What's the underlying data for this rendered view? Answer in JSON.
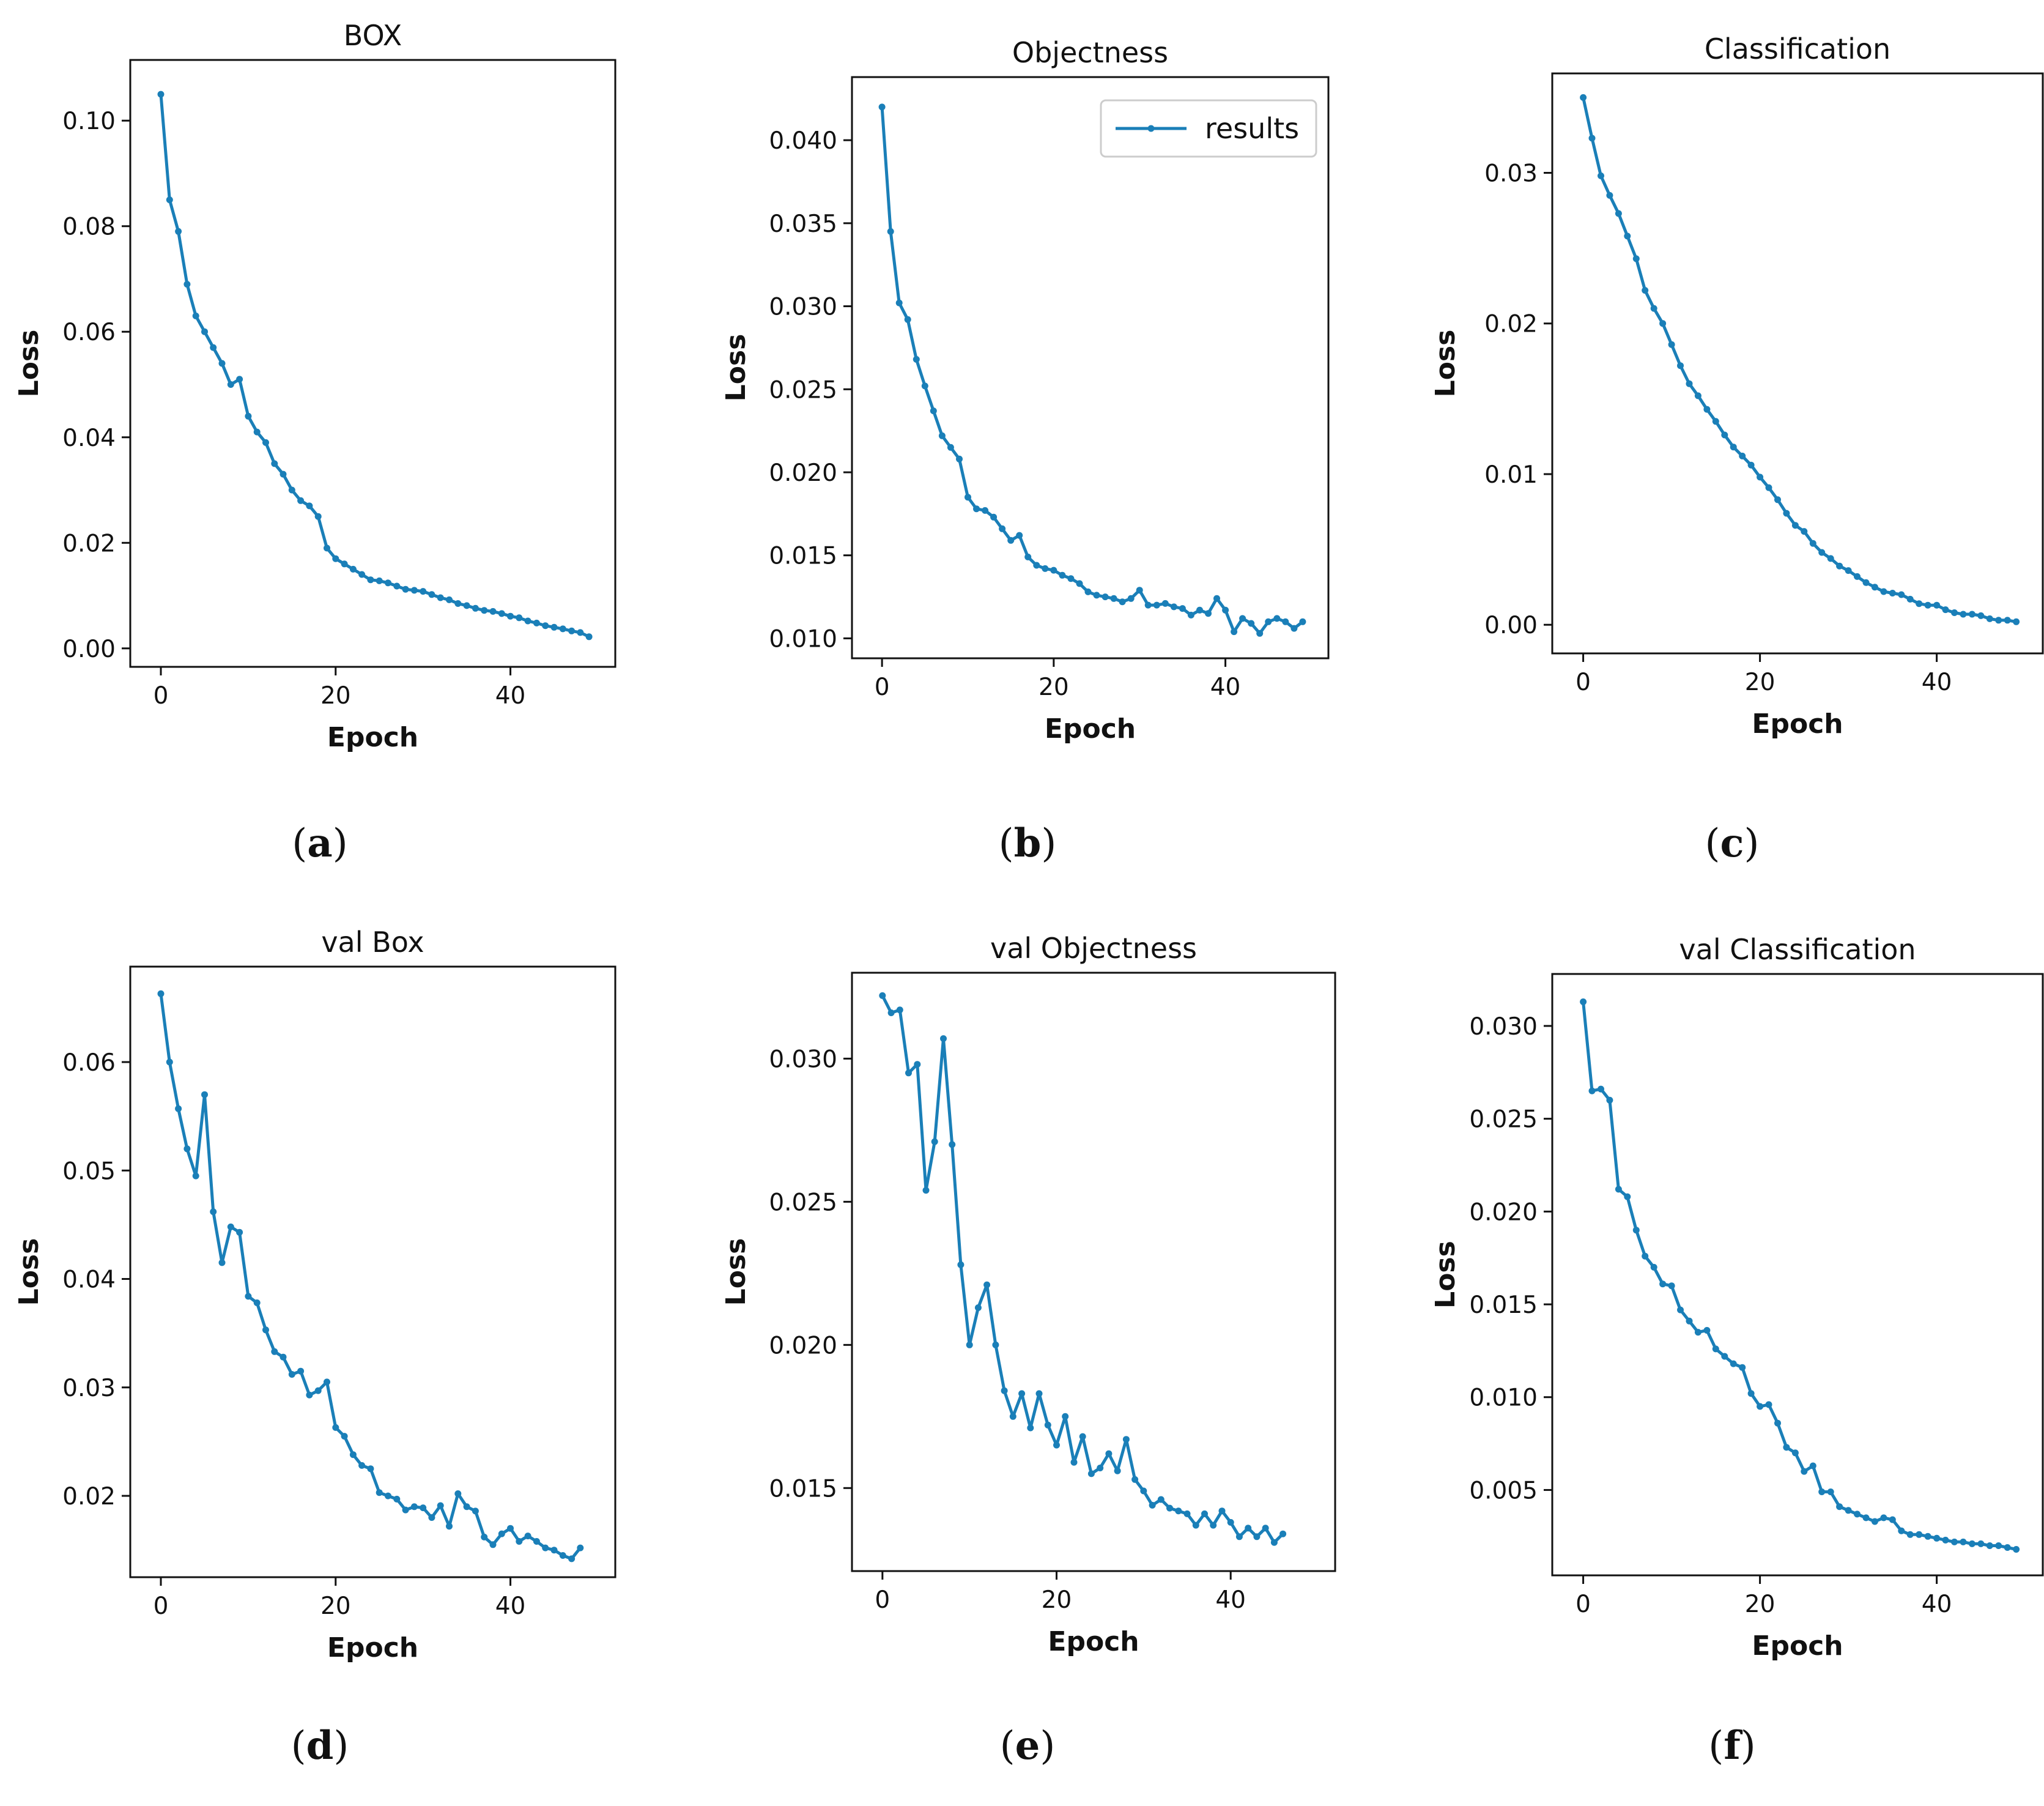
{
  "chart_data": [
    {
      "type": "line",
      "title": "BOX",
      "xlabel": "Epoch",
      "ylabel": "Loss",
      "caption": {
        "open": "(",
        "letter": "a",
        "close": ")"
      },
      "xlim": [
        -3.5,
        52
      ],
      "ylim": [
        -0.0035,
        0.1115
      ],
      "xticks": [
        0,
        20,
        40
      ],
      "yticks": [
        0.0,
        0.02,
        0.04,
        0.06,
        0.08,
        0.1
      ],
      "ytick_labels": [
        "0.00",
        "0.02",
        "0.04",
        "0.06",
        "0.08",
        "0.10"
      ],
      "line_color": "#1a7fb8",
      "grid": false,
      "series": [
        {
          "values": [
            0.105,
            0.085,
            0.079,
            0.069,
            0.063,
            0.06,
            0.057,
            0.054,
            0.05,
            0.051,
            0.044,
            0.041,
            0.039,
            0.035,
            0.033,
            0.03,
            0.028,
            0.027,
            0.025,
            0.019,
            0.017,
            0.016,
            0.015,
            0.014,
            0.013,
            0.0128,
            0.0124,
            0.0118,
            0.0112,
            0.011,
            0.0108,
            0.0102,
            0.0096,
            0.0092,
            0.0085,
            0.0081,
            0.0076,
            0.0072,
            0.007,
            0.0066,
            0.0061,
            0.0058,
            0.0052,
            0.0048,
            0.0043,
            0.004,
            0.0037,
            0.0033,
            0.003,
            0.0022
          ]
        }
      ]
    },
    {
      "type": "line",
      "title": "Objectness",
      "xlabel": "Epoch",
      "ylabel": "Loss",
      "caption": {
        "open": "(",
        "letter": "b",
        "close": ")"
      },
      "xlim": [
        -3.5,
        52
      ],
      "ylim": [
        0.0088,
        0.0438
      ],
      "xticks": [
        0,
        20,
        40
      ],
      "yticks": [
        0.01,
        0.015,
        0.02,
        0.025,
        0.03,
        0.035,
        0.04
      ],
      "ytick_labels": [
        "0.010",
        "0.015",
        "0.020",
        "0.025",
        "0.030",
        "0.035",
        "0.040"
      ],
      "legend": {
        "label": "results",
        "position": "upper right"
      },
      "line_color": "#1a7fb8",
      "grid": false,
      "series": [
        {
          "name": "results",
          "values": [
            0.042,
            0.0345,
            0.0302,
            0.0292,
            0.0268,
            0.0252,
            0.0237,
            0.0222,
            0.0215,
            0.0208,
            0.0185,
            0.0178,
            0.0177,
            0.0173,
            0.0166,
            0.0159,
            0.0162,
            0.0149,
            0.0144,
            0.0142,
            0.0141,
            0.0138,
            0.0136,
            0.0133,
            0.0128,
            0.0126,
            0.0125,
            0.0124,
            0.0122,
            0.0124,
            0.0129,
            0.012,
            0.012,
            0.0121,
            0.0119,
            0.0118,
            0.0114,
            0.0117,
            0.0115,
            0.0124,
            0.0117,
            0.0104,
            0.0112,
            0.0109,
            0.0103,
            0.011,
            0.0112,
            0.011,
            0.0106,
            0.011
          ]
        }
      ]
    },
    {
      "type": "line",
      "title": "Classification",
      "xlabel": "Epoch",
      "ylabel": "Loss",
      "caption": {
        "open": "(",
        "letter": "c",
        "close": ")"
      },
      "xlim": [
        -3.5,
        52
      ],
      "ylim": [
        -0.0019,
        0.0366
      ],
      "xticks": [
        0,
        20,
        40
      ],
      "yticks": [
        0.0,
        0.01,
        0.02,
        0.03
      ],
      "ytick_labels": [
        "0.00",
        "0.01",
        "0.02",
        "0.03"
      ],
      "line_color": "#1a7fb8",
      "grid": false,
      "series": [
        {
          "values": [
            0.035,
            0.0323,
            0.0298,
            0.0285,
            0.0273,
            0.0258,
            0.0243,
            0.0222,
            0.021,
            0.02,
            0.0186,
            0.0172,
            0.016,
            0.0152,
            0.0143,
            0.0135,
            0.0126,
            0.0118,
            0.0112,
            0.0106,
            0.0098,
            0.0091,
            0.0083,
            0.0074,
            0.0066,
            0.0062,
            0.0054,
            0.0048,
            0.0044,
            0.0039,
            0.0036,
            0.0032,
            0.0028,
            0.0025,
            0.0022,
            0.0021,
            0.002,
            0.0017,
            0.0014,
            0.0013,
            0.0013,
            0.001,
            0.0008,
            0.0007,
            0.0007,
            0.0006,
            0.0004,
            0.0003,
            0.0003,
            0.0002
          ]
        }
      ]
    },
    {
      "type": "line",
      "title": "val Box",
      "xlabel": "Epoch",
      "ylabel": "Loss",
      "caption": {
        "open": "(",
        "letter": "d",
        "close": ")"
      },
      "xlim": [
        -3.5,
        52
      ],
      "ylim": [
        0.0125,
        0.0688
      ],
      "xticks": [
        0,
        20,
        40
      ],
      "yticks": [
        0.02,
        0.03,
        0.04,
        0.05,
        0.06
      ],
      "ytick_labels": [
        "0.02",
        "0.03",
        "0.04",
        "0.05",
        "0.06"
      ],
      "line_color": "#1a7fb8",
      "grid": false,
      "series": [
        {
          "values": [
            0.0663,
            0.06,
            0.0557,
            0.052,
            0.0495,
            0.057,
            0.0462,
            0.0415,
            0.0448,
            0.0443,
            0.0384,
            0.0378,
            0.0353,
            0.0333,
            0.0328,
            0.0312,
            0.0315,
            0.0293,
            0.0297,
            0.0305,
            0.0263,
            0.0255,
            0.0238,
            0.0228,
            0.0225,
            0.0203,
            0.02,
            0.0197,
            0.0187,
            0.019,
            0.0189,
            0.018,
            0.0191,
            0.0172,
            0.0202,
            0.019,
            0.0186,
            0.0162,
            0.0155,
            0.0165,
            0.017,
            0.0158,
            0.0163,
            0.0158,
            0.0152,
            0.015,
            0.0145,
            0.0142,
            0.0152
          ]
        }
      ]
    },
    {
      "type": "line",
      "title": "val Objectness",
      "xlabel": "Epoch",
      "ylabel": "Loss",
      "caption": {
        "open": "(",
        "letter": "e",
        "close": ")"
      },
      "xlim": [
        -3.5,
        52
      ],
      "ylim": [
        0.0121,
        0.033
      ],
      "xticks": [
        0,
        20,
        40
      ],
      "yticks": [
        0.015,
        0.02,
        0.025,
        0.03
      ],
      "ytick_labels": [
        "0.015",
        "0.020",
        "0.025",
        "0.030"
      ],
      "line_color": "#1a7fb8",
      "grid": false,
      "series": [
        {
          "values": [
            0.0322,
            0.0316,
            0.0317,
            0.0295,
            0.0298,
            0.0254,
            0.0271,
            0.0307,
            0.027,
            0.0228,
            0.02,
            0.0213,
            0.0221,
            0.02,
            0.0184,
            0.0175,
            0.0183,
            0.0171,
            0.0183,
            0.0172,
            0.0165,
            0.0175,
            0.0159,
            0.0168,
            0.0155,
            0.0157,
            0.0162,
            0.0156,
            0.0167,
            0.0153,
            0.0149,
            0.0144,
            0.0146,
            0.0143,
            0.0142,
            0.0141,
            0.0137,
            0.0141,
            0.0137,
            0.0142,
            0.0138,
            0.0133,
            0.0136,
            0.0133,
            0.0136,
            0.0131,
            0.0134
          ]
        }
      ]
    },
    {
      "type": "line",
      "title": "val Classification",
      "xlabel": "Epoch",
      "ylabel": "Loss",
      "caption": {
        "open": "(",
        "letter": "f",
        "close": ")"
      },
      "xlim": [
        -3.5,
        52
      ],
      "ylim": [
        0.0004,
        0.0328
      ],
      "xticks": [
        0,
        20,
        40
      ],
      "yticks": [
        0.005,
        0.01,
        0.015,
        0.02,
        0.025,
        0.03
      ],
      "ytick_labels": [
        "0.005",
        "0.010",
        "0.015",
        "0.020",
        "0.025",
        "0.030"
      ],
      "line_color": "#1a7fb8",
      "grid": false,
      "series": [
        {
          "values": [
            0.0313,
            0.0265,
            0.0266,
            0.026,
            0.0212,
            0.0208,
            0.019,
            0.0176,
            0.017,
            0.0161,
            0.016,
            0.0147,
            0.0141,
            0.0135,
            0.0136,
            0.0126,
            0.0122,
            0.0118,
            0.0116,
            0.0102,
            0.0095,
            0.0096,
            0.0086,
            0.0073,
            0.007,
            0.006,
            0.0063,
            0.0049,
            0.0049,
            0.0041,
            0.0039,
            0.0037,
            0.0035,
            0.0033,
            0.0035,
            0.0034,
            0.0028,
            0.0026,
            0.0026,
            0.0025,
            0.0024,
            0.0023,
            0.0022,
            0.0022,
            0.0021,
            0.0021,
            0.002,
            0.002,
            0.0019,
            0.0018
          ]
        }
      ]
    }
  ]
}
